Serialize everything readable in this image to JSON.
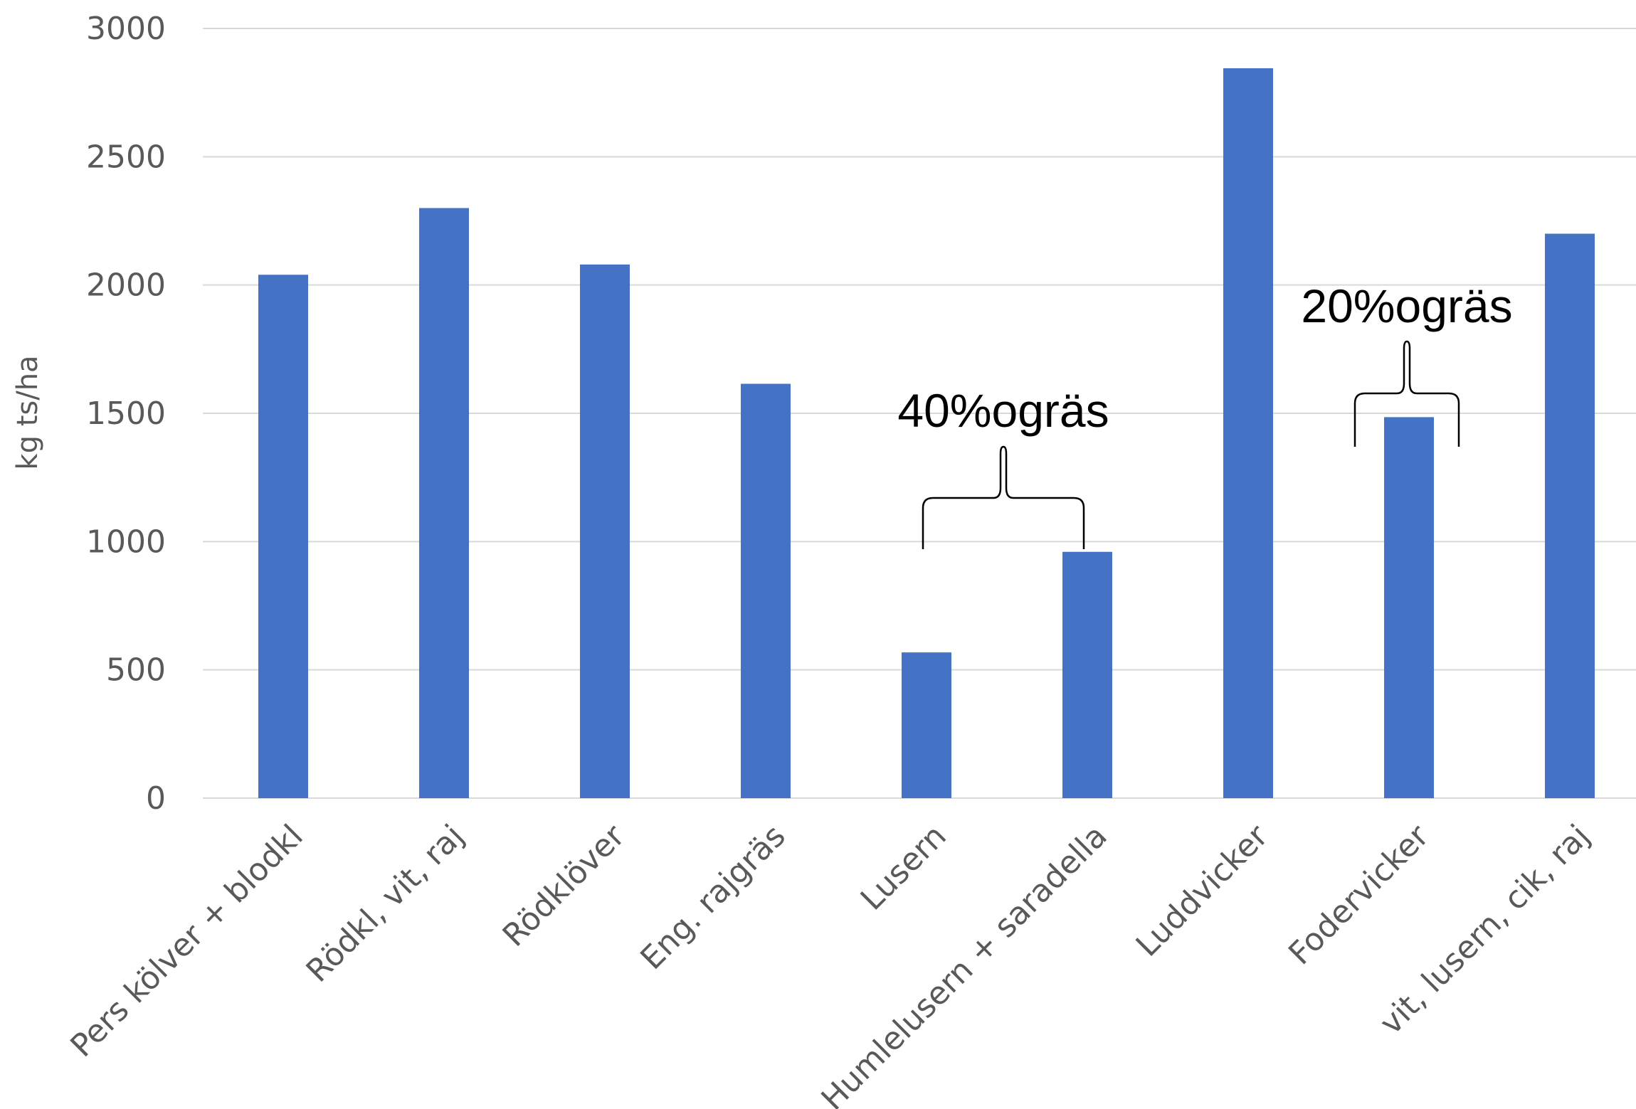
{
  "chart_data": {
    "type": "bar",
    "categories": [
      "Pers kölver + blodkl",
      "Rödkl, vit, raj",
      "Rödklöver",
      "Eng. rajgräs",
      "Lusern",
      "Humlelusern + saradella",
      "Luddvicker",
      "Fodervicker",
      "vit, lusern, cik, raj"
    ],
    "values": [
      2040,
      2300,
      2080,
      1615,
      568,
      960,
      2845,
      1485,
      2200
    ],
    "ylabel": "kg ts/ha",
    "ylim": [
      0,
      3000
    ],
    "yticks": [
      0,
      500,
      1000,
      1500,
      2000,
      2500,
      3000
    ],
    "grid": true,
    "bar_color": "#4472c4",
    "annotations": [
      {
        "text": "40%ogräs",
        "spans_categories": [
          4,
          5
        ]
      },
      {
        "text": "20%ogräs",
        "spans_categories": [
          7,
          7
        ]
      }
    ]
  }
}
